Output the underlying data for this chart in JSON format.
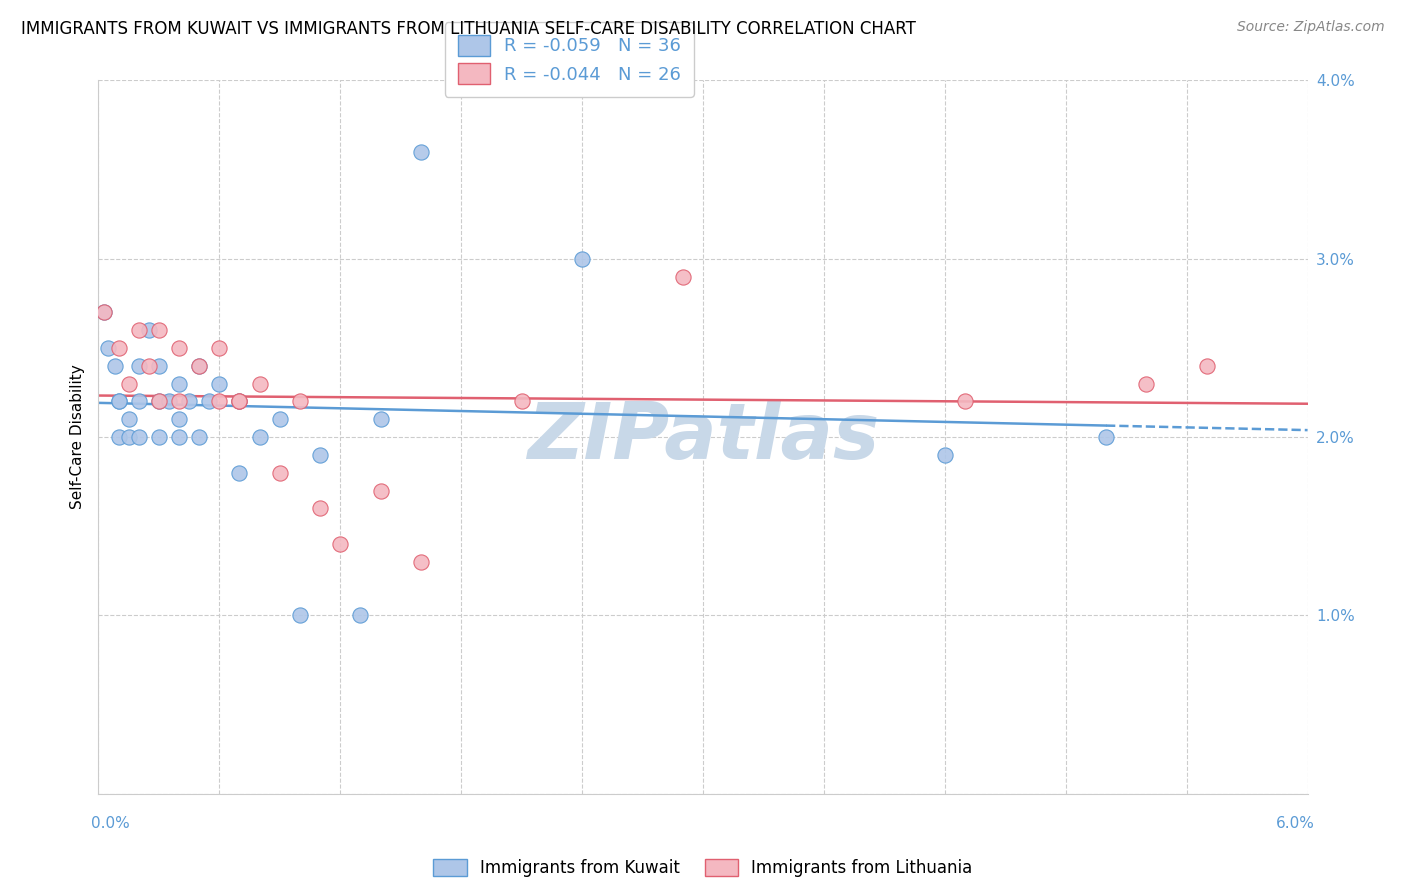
{
  "title": "IMMIGRANTS FROM KUWAIT VS IMMIGRANTS FROM LITHUANIA SELF-CARE DISABILITY CORRELATION CHART",
  "source": "Source: ZipAtlas.com",
  "ylabel": "Self-Care Disability",
  "xmin": 0.0,
  "xmax": 0.06,
  "ymin": 0.0,
  "ymax": 0.04,
  "yticks": [
    0.0,
    0.01,
    0.02,
    0.03,
    0.04
  ],
  "ytick_labels": [
    "",
    "1.0%",
    "2.0%",
    "3.0%",
    "4.0%"
  ],
  "kuwait_color": "#aec6e8",
  "kuwait_edge_color": "#5b9bd5",
  "lithuania_color": "#f4b8c1",
  "lithuania_edge_color": "#e06070",
  "kuwait_R": "-0.059",
  "kuwait_N": "36",
  "lithuania_R": "-0.044",
  "lithuania_N": "26",
  "kuwait_x": [
    0.0003,
    0.0005,
    0.0008,
    0.001,
    0.001,
    0.001,
    0.0015,
    0.0015,
    0.002,
    0.002,
    0.002,
    0.0025,
    0.003,
    0.003,
    0.003,
    0.0035,
    0.004,
    0.004,
    0.004,
    0.0045,
    0.005,
    0.005,
    0.0055,
    0.006,
    0.007,
    0.007,
    0.008,
    0.009,
    0.01,
    0.011,
    0.013,
    0.014,
    0.016,
    0.024,
    0.042,
    0.05
  ],
  "kuwait_y": [
    0.027,
    0.025,
    0.024,
    0.022,
    0.02,
    0.022,
    0.021,
    0.02,
    0.024,
    0.022,
    0.02,
    0.026,
    0.024,
    0.022,
    0.02,
    0.022,
    0.023,
    0.021,
    0.02,
    0.022,
    0.024,
    0.02,
    0.022,
    0.023,
    0.022,
    0.018,
    0.02,
    0.021,
    0.01,
    0.019,
    0.01,
    0.021,
    0.036,
    0.03,
    0.019,
    0.02
  ],
  "lithuania_x": [
    0.0003,
    0.001,
    0.0015,
    0.002,
    0.0025,
    0.003,
    0.003,
    0.004,
    0.004,
    0.005,
    0.006,
    0.006,
    0.007,
    0.007,
    0.008,
    0.009,
    0.01,
    0.011,
    0.012,
    0.014,
    0.016,
    0.021,
    0.029,
    0.043,
    0.052,
    0.055
  ],
  "lithuania_y": [
    0.027,
    0.025,
    0.023,
    0.026,
    0.024,
    0.026,
    0.022,
    0.025,
    0.022,
    0.024,
    0.025,
    0.022,
    0.022,
    0.022,
    0.023,
    0.018,
    0.022,
    0.016,
    0.014,
    0.017,
    0.013,
    0.022,
    0.029,
    0.022,
    0.023,
    0.024
  ],
  "bg_color": "#ffffff",
  "grid_color": "#cccccc",
  "watermark": "ZIPatlas",
  "watermark_color": "#c8d8e8",
  "marker_size": 120,
  "line_color_kuwait": "#5b9bd5",
  "line_color_lithuania": "#e06070",
  "legend_label_color": "#5b9bd5",
  "tick_color": "#5b9bd5"
}
